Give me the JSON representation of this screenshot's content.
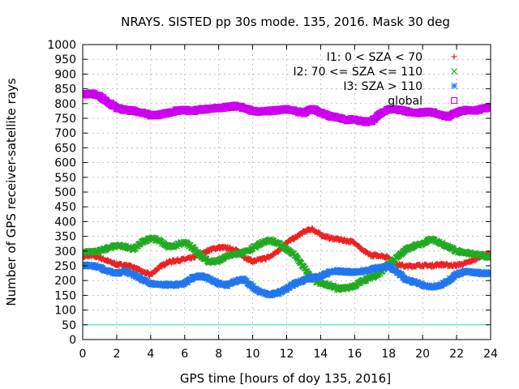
{
  "chart_data": {
    "type": "scatter",
    "title": "NRAYS. SISTED pp 30s mode. 135, 2016. Mask 30 deg",
    "xlabel": "GPS time [hours of doy 135, 2016]",
    "ylabel": "Number of GPS receiver-satellite rays",
    "xlim": [
      0,
      24
    ],
    "ylim": [
      0,
      1000
    ],
    "xticks": [
      0,
      2,
      4,
      6,
      8,
      10,
      12,
      14,
      16,
      18,
      20,
      22,
      24
    ],
    "yticks": [
      0,
      50,
      100,
      150,
      200,
      250,
      300,
      350,
      400,
      450,
      500,
      550,
      600,
      650,
      700,
      750,
      800,
      850,
      900,
      950,
      1000
    ],
    "legend_position": "top-right",
    "reference_line": {
      "y": 50,
      "color": "#33cccc"
    },
    "series": [
      {
        "name": "I1: 0 < SZA < 70",
        "color": "#ee2222",
        "marker": "plus",
        "x": [
          0,
          0.5,
          1,
          1.5,
          2,
          2.5,
          3,
          3.5,
          4,
          4.5,
          5,
          5.5,
          6,
          6.5,
          7,
          7.5,
          8,
          8.5,
          9,
          9.5,
          10,
          10.5,
          11,
          11.5,
          12,
          12.5,
          13,
          13.5,
          14,
          14.5,
          15,
          15.5,
          16,
          16.5,
          17,
          17.5,
          18,
          18.5,
          19,
          19.5,
          20,
          20.5,
          21,
          21.5,
          22,
          22.5,
          23,
          23.5,
          24
        ],
        "y": [
          280,
          285,
          278,
          265,
          255,
          252,
          245,
          230,
          220,
          245,
          262,
          268,
          272,
          278,
          290,
          305,
          312,
          310,
          305,
          280,
          265,
          272,
          280,
          300,
          330,
          345,
          365,
          375,
          355,
          345,
          340,
          335,
          330,
          300,
          285,
          285,
          278,
          255,
          248,
          250,
          252,
          250,
          255,
          252,
          252,
          258,
          270,
          285,
          290
        ]
      },
      {
        "name": "I2: 70 <= SZA <= 110",
        "color": "#22aa22",
        "marker": "cross",
        "x": [
          0,
          0.5,
          1,
          1.5,
          2,
          2.5,
          3,
          3.5,
          4,
          4.5,
          5,
          5.5,
          6,
          6.5,
          7,
          7.5,
          8,
          8.5,
          9,
          9.5,
          10,
          10.5,
          11,
          11.5,
          12,
          12.5,
          13,
          13.5,
          14,
          14.5,
          15,
          15.5,
          16,
          16.5,
          17,
          17.5,
          18,
          18.5,
          19,
          19.5,
          20,
          20.5,
          21,
          21.5,
          22,
          22.5,
          23,
          23.5,
          24
        ],
        "y": [
          295,
          298,
          300,
          310,
          320,
          315,
          305,
          330,
          345,
          335,
          315,
          320,
          330,
          310,
          280,
          262,
          268,
          285,
          290,
          295,
          310,
          328,
          335,
          328,
          305,
          285,
          245,
          205,
          190,
          185,
          172,
          175,
          182,
          200,
          212,
          225,
          255,
          278,
          305,
          318,
          325,
          340,
          330,
          315,
          300,
          295,
          290,
          285,
          278
        ]
      },
      {
        "name": "I3: SZA > 110",
        "color": "#2277ee",
        "marker": "star",
        "x": [
          0,
          0.5,
          1,
          1.5,
          2,
          2.5,
          3,
          3.5,
          4,
          4.5,
          5,
          5.5,
          6,
          6.5,
          7,
          7.5,
          8,
          8.5,
          9,
          9.5,
          10,
          10.5,
          11,
          11.5,
          12,
          12.5,
          13,
          13.5,
          14,
          14.5,
          15,
          15.5,
          16,
          16.5,
          17,
          17.5,
          18,
          18.5,
          19,
          19.5,
          20,
          20.5,
          21,
          21.5,
          22,
          22.5,
          23,
          23.5,
          24
        ],
        "y": [
          250,
          252,
          245,
          232,
          225,
          232,
          220,
          205,
          190,
          185,
          186,
          185,
          190,
          210,
          215,
          205,
          190,
          185,
          198,
          205,
          178,
          160,
          152,
          158,
          172,
          190,
          202,
          210,
          215,
          228,
          232,
          230,
          228,
          232,
          238,
          245,
          248,
          230,
          205,
          195,
          185,
          178,
          182,
          200,
          222,
          230,
          228,
          225,
          225
        ]
      },
      {
        "name": "global",
        "color": "#cc00ee",
        "marker": "square",
        "x": [
          0,
          0.5,
          1,
          1.5,
          2,
          2.5,
          3,
          3.5,
          4,
          4.5,
          5,
          5.5,
          6,
          6.5,
          7,
          7.5,
          8,
          8.5,
          9,
          9.5,
          10,
          10.5,
          11,
          11.5,
          12,
          12.5,
          13,
          13.5,
          14,
          14.5,
          15,
          15.5,
          16,
          16.5,
          17,
          17.5,
          18,
          18.5,
          19,
          19.5,
          20,
          20.5,
          21,
          21.5,
          22,
          22.5,
          23,
          23.5,
          24
        ],
        "y": [
          830,
          835,
          825,
          805,
          785,
          778,
          775,
          770,
          760,
          762,
          768,
          775,
          778,
          775,
          780,
          782,
          785,
          788,
          792,
          785,
          775,
          772,
          775,
          778,
          782,
          775,
          768,
          782,
          770,
          758,
          752,
          745,
          748,
          738,
          740,
          765,
          780,
          780,
          775,
          768,
          770,
          772,
          765,
          755,
          770,
          778,
          775,
          782,
          788
        ]
      }
    ]
  }
}
